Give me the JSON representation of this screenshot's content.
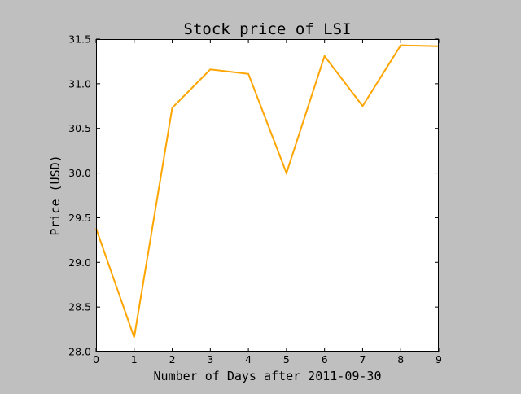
{
  "chart_data": {
    "type": "line",
    "title": "Stock price of LSI",
    "xlabel": "Number of Days after 2011-09-30",
    "ylabel": "Price (USD)",
    "x": [
      0,
      1,
      2,
      3,
      4,
      5,
      6,
      7,
      8,
      9
    ],
    "series": [
      {
        "values": [
          29.38,
          28.16,
          30.73,
          31.16,
          31.11,
          30.0,
          31.31,
          30.75,
          31.43,
          31.42
        ],
        "color": "#ffa500"
      }
    ],
    "xlim": [
      0,
      9
    ],
    "ylim": [
      28.0,
      31.5
    ],
    "xticks": [
      "0",
      "1",
      "2",
      "3",
      "4",
      "5",
      "6",
      "7",
      "8",
      "9"
    ],
    "yticks": [
      "28.0",
      "28.5",
      "29.0",
      "29.5",
      "30.0",
      "30.5",
      "31.0",
      "31.5"
    ],
    "grid": false,
    "legend": false
  }
}
